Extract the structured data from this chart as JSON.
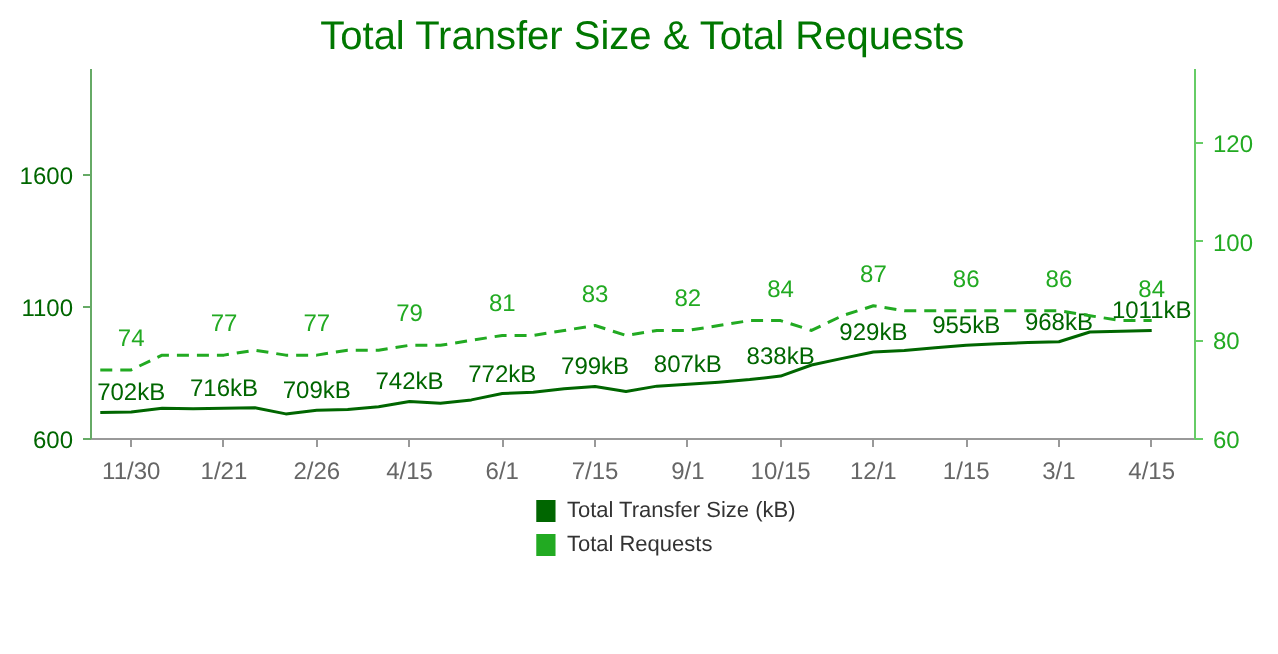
{
  "chart_data": {
    "type": "line",
    "title": "Total Transfer Size & Total Requests",
    "categories": [
      null,
      "11/30",
      null,
      null,
      "1/21",
      null,
      null,
      "2/26",
      null,
      null,
      "4/15",
      null,
      null,
      "6/1",
      null,
      null,
      "7/15",
      null,
      null,
      "9/1",
      null,
      null,
      "10/15",
      null,
      null,
      "12/1",
      null,
      null,
      "1/15",
      null,
      null,
      "3/1",
      null,
      null,
      "4/15"
    ],
    "series": [
      {
        "name": "Total Transfer Size (kB)",
        "color": "#006600",
        "line_style": "solid",
        "values": [
          700,
          702,
          716,
          714,
          716,
          718,
          695,
          709,
          712,
          722,
          742,
          735,
          748,
          772,
          777,
          790,
          799,
          780,
          800,
          807,
          815,
          825,
          838,
          880,
          905,
          929,
          935,
          945,
          955,
          960,
          965,
          968,
          1005,
          1008,
          1011
        ],
        "value_labels": [
          null,
          "702kB",
          null,
          null,
          "716kB",
          null,
          null,
          "709kB",
          null,
          null,
          "742kB",
          null,
          null,
          "772kB",
          null,
          null,
          "799kB",
          null,
          null,
          "807kB",
          null,
          null,
          "838kB",
          null,
          null,
          "929kB",
          null,
          null,
          "955kB",
          null,
          null,
          "968kB",
          null,
          null,
          "1011kB"
        ]
      },
      {
        "name": "Total Requests",
        "color": "#22aa22",
        "axis": "y2",
        "line_style": "dashed",
        "values": [
          74,
          74,
          77,
          77,
          77,
          78,
          77,
          77,
          78,
          78,
          79,
          79,
          80,
          81,
          81,
          82,
          83,
          81,
          82,
          82,
          83,
          84,
          84,
          82,
          85,
          87,
          86,
          86,
          86,
          86,
          86,
          86,
          85,
          84,
          84
        ],
        "value_labels": [
          null,
          "74",
          null,
          null,
          "77",
          null,
          null,
          "77",
          null,
          null,
          "79",
          null,
          null,
          "81",
          null,
          null,
          "83",
          null,
          null,
          "82",
          null,
          null,
          "84",
          null,
          null,
          "87",
          null,
          null,
          "86",
          null,
          null,
          "86",
          null,
          null,
          "84"
        ]
      }
    ],
    "ylim": [
      600,
      2000
    ],
    "yticks": [
      600,
      1100,
      1600
    ],
    "y2lim": [
      60,
      135
    ],
    "y2ticks": [
      60,
      80,
      100,
      120
    ],
    "grid": false,
    "legend": "bottom",
    "marker": "none"
  }
}
